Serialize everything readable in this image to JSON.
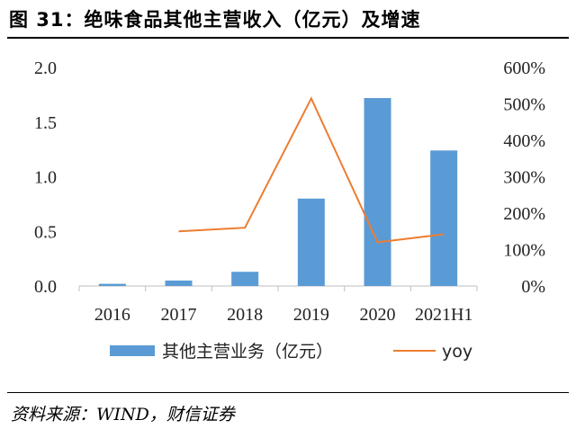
{
  "header": {
    "title": "图 31：绝味食品其他主营收入（亿元）及增速"
  },
  "footer": {
    "source": "资料来源：WIND，财信证券"
  },
  "colors": {
    "bar": "#5B9BD5",
    "line": "#ED7D31",
    "axis": "#BFBFBF"
  },
  "chart_data": {
    "type": "bar",
    "categories": [
      "2016",
      "2017",
      "2018",
      "2019",
      "2020",
      "2021H1"
    ],
    "series": [
      {
        "name": "其他主营业务（亿元）",
        "type": "bar",
        "axis": "left",
        "values": [
          0.02,
          0.05,
          0.13,
          0.8,
          1.72,
          1.24
        ]
      },
      {
        "name": "yoy",
        "type": "line",
        "axis": "right",
        "values": [
          null,
          150,
          160,
          515,
          120,
          142
        ]
      }
    ],
    "y_left": {
      "lim": [
        0,
        2.0
      ],
      "ticks": [
        "0.0",
        "0.5",
        "1.0",
        "1.5",
        "2.0"
      ]
    },
    "y_right": {
      "lim": [
        0,
        600
      ],
      "ticks": [
        "0%",
        "100%",
        "200%",
        "300%",
        "400%",
        "500%",
        "600%"
      ]
    },
    "legend_position": "bottom",
    "grid": false,
    "title": "",
    "xlabel": "",
    "ylabel": ""
  }
}
